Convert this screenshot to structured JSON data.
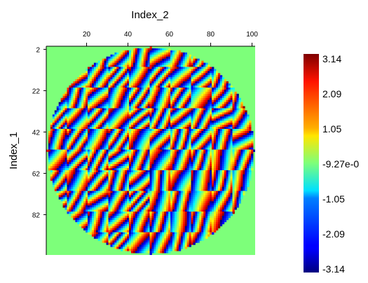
{
  "chart_data": {
    "type": "heatmap",
    "title": "",
    "xlabel": "Index_2",
    "ylabel": "Index_1",
    "x_axis_position": "top",
    "x_ticks": [
      20,
      40,
      60,
      80,
      100
    ],
    "y_ticks": [
      2,
      22,
      42,
      62,
      82
    ],
    "x_range": [
      1,
      101
    ],
    "y_range": [
      1,
      101
    ],
    "background_value": 0,
    "mask": "circular aperture centered at (51, 51), radius ~50",
    "value_range": [
      -3.14,
      3.14
    ],
    "colormap": "jet",
    "grid": false,
    "colorbar": {
      "position": "right",
      "min": -3.14,
      "max": 3.14,
      "tick_labels": [
        "3.14",
        "2.09",
        "1.05",
        "-9.27e-0",
        "-1.05",
        "-2.09",
        "-3.14"
      ]
    }
  }
}
